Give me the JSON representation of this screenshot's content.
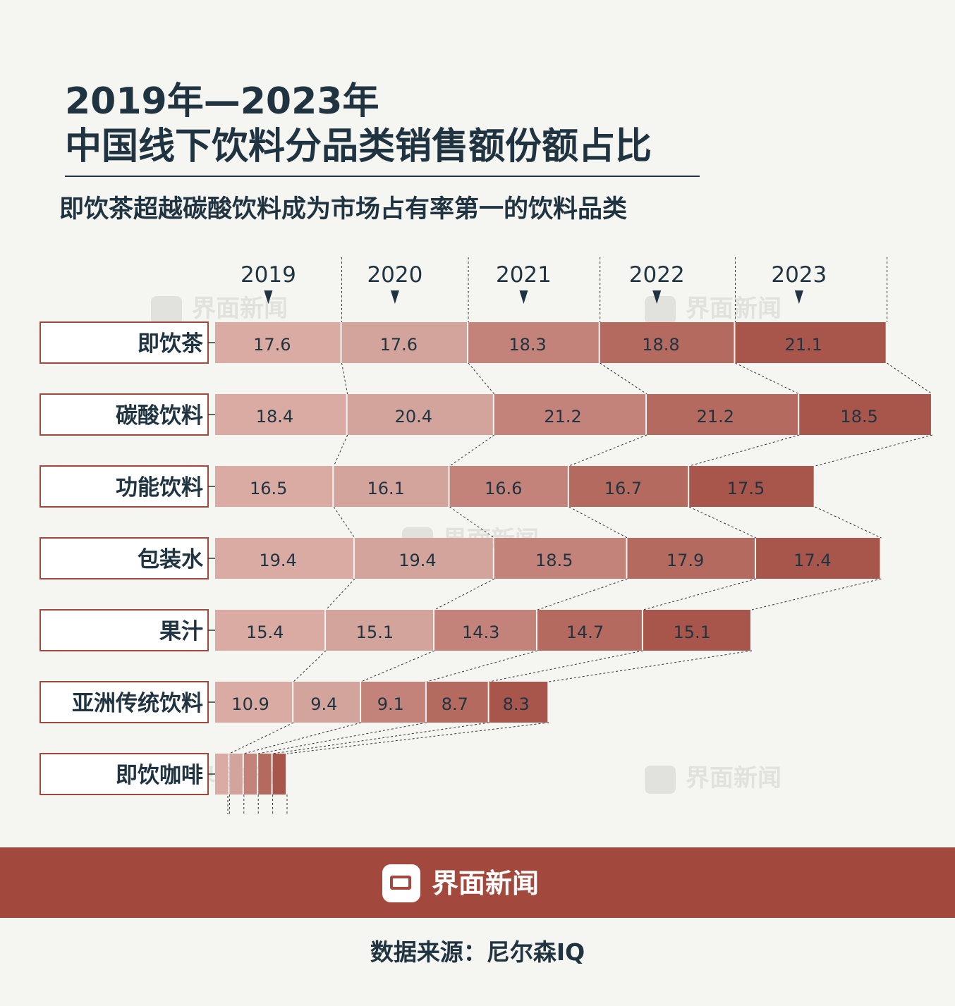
{
  "title_line1": "2019年—2023年",
  "title_line2": "中国线下饮料分品类销售额份额占比",
  "subtitle": "即饮茶超越碳酸饮料成为市场占有率第一的饮料品类",
  "brand": "界面新闻",
  "source": "数据来源：尼尔森IQ",
  "watermark": "界面新闻",
  "colors": {
    "background": "#f5f5f2",
    "text": "#1f3340",
    "brand_red": "#a3483c",
    "year_2019": "#d9aba3",
    "year_2020": "#d3a49c",
    "year_2021": "#c4837a",
    "year_2022": "#b56a60",
    "year_2023": "#a8564b"
  },
  "chart_data": {
    "type": "bar",
    "orientation": "horizontal",
    "stacked": true,
    "unit": "%",
    "categories": [
      "即饮茶",
      "碳酸饮料",
      "功能饮料",
      "包装水",
      "果汁",
      "亚洲传统饮料",
      "即饮咖啡"
    ],
    "series": [
      {
        "name": "2019",
        "values": [
          17.6,
          18.4,
          16.5,
          19.4,
          15.4,
          10.9,
          2.0
        ]
      },
      {
        "name": "2020",
        "values": [
          17.6,
          20.4,
          16.1,
          19.4,
          15.1,
          9.4,
          2.0
        ]
      },
      {
        "name": "2021",
        "values": [
          18.3,
          21.2,
          16.6,
          18.5,
          14.3,
          9.1,
          2.0
        ]
      },
      {
        "name": "2022",
        "values": [
          18.8,
          21.2,
          16.7,
          17.9,
          14.7,
          8.7,
          2.0
        ]
      },
      {
        "name": "2023",
        "values": [
          21.1,
          18.5,
          17.5,
          17.4,
          15.1,
          8.3,
          2.0
        ]
      }
    ],
    "unlabeled_cells": [
      [
        6,
        0
      ],
      [
        6,
        1
      ],
      [
        6,
        2
      ],
      [
        6,
        3
      ],
      [
        6,
        4
      ]
    ]
  }
}
